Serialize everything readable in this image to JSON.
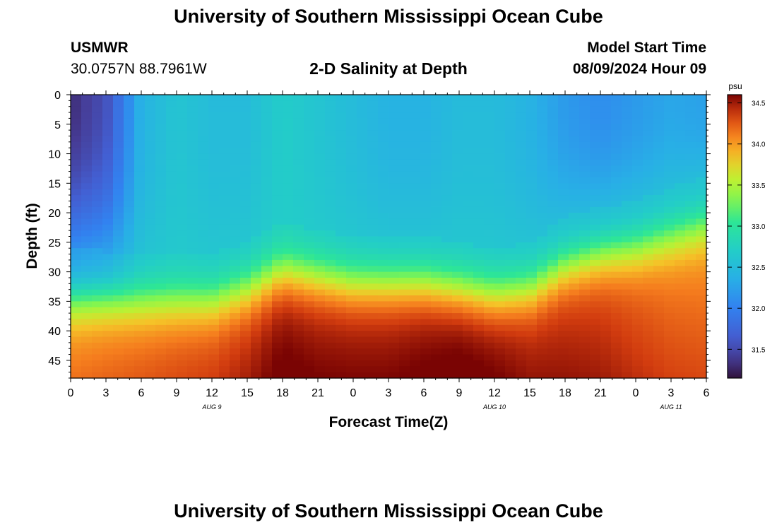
{
  "header": {
    "title": "University of Southern Mississippi Ocean Cube",
    "station_name": "USMWR",
    "coordinates": "30.0757N  88.7961W",
    "plot_title": "2-D Salinity at Depth",
    "model_start_label": "Model Start Time",
    "model_start_value": "08/09/2024 Hour 09"
  },
  "footer": {
    "title": "University of Southern Mississippi Ocean Cube"
  },
  "chart_data": {
    "type": "heatmap",
    "title": "2-D Salinity at Depth",
    "xlabel": "Forecast Time(Z)",
    "ylabel": "Depth (ft)",
    "x_ticks": [
      "0",
      "3",
      "6",
      "9",
      "12",
      "15",
      "18",
      "21",
      "0",
      "3",
      "6",
      "9",
      "12",
      "15",
      "18",
      "21",
      "0",
      "3",
      "6"
    ],
    "date_labels": [
      {
        "label": "AUG 9",
        "at_hour": 12
      },
      {
        "label": "AUG 10",
        "at_hour": 36
      },
      {
        "label": "AUG 11",
        "at_hour": 51
      }
    ],
    "x_range_hours": [
      0,
      54
    ],
    "y_ticks": [
      "0",
      "5",
      "10",
      "15",
      "20",
      "25",
      "30",
      "35",
      "40",
      "45"
    ],
    "y_range_ft": [
      0,
      48
    ],
    "colorbar": {
      "unit": "psu",
      "range": [
        31.15,
        34.6
      ],
      "ticks": [
        "31.5",
        "32.0",
        "32.5",
        "33.0",
        "33.5",
        "34.0",
        "34.5"
      ]
    },
    "key_hours": [
      0,
      3,
      6,
      9,
      12,
      15,
      18,
      21,
      24,
      27,
      30,
      33,
      36,
      39,
      42,
      45,
      48,
      51,
      54
    ],
    "halocline_depth_ft": [
      34.5,
      34.5,
      35,
      35,
      35,
      33,
      30,
      31,
      32,
      32,
      32,
      33,
      34,
      33,
      29,
      27,
      26,
      24,
      22
    ],
    "surface_salinity_psu": [
      31.3,
      31.55,
      32.4,
      32.6,
      32.5,
      32.5,
      32.7,
      32.6,
      32.5,
      32.4,
      32.4,
      32.5,
      32.5,
      32.4,
      32.2,
      32.1,
      32.2,
      32.3,
      32.25
    ],
    "bottom_salinity_psu": [
      34.05,
      34.1,
      34.15,
      34.2,
      34.25,
      34.35,
      34.5,
      34.45,
      34.45,
      34.45,
      34.5,
      34.55,
      34.5,
      34.4,
      34.35,
      34.3,
      34.2,
      34.1,
      34.05
    ]
  }
}
